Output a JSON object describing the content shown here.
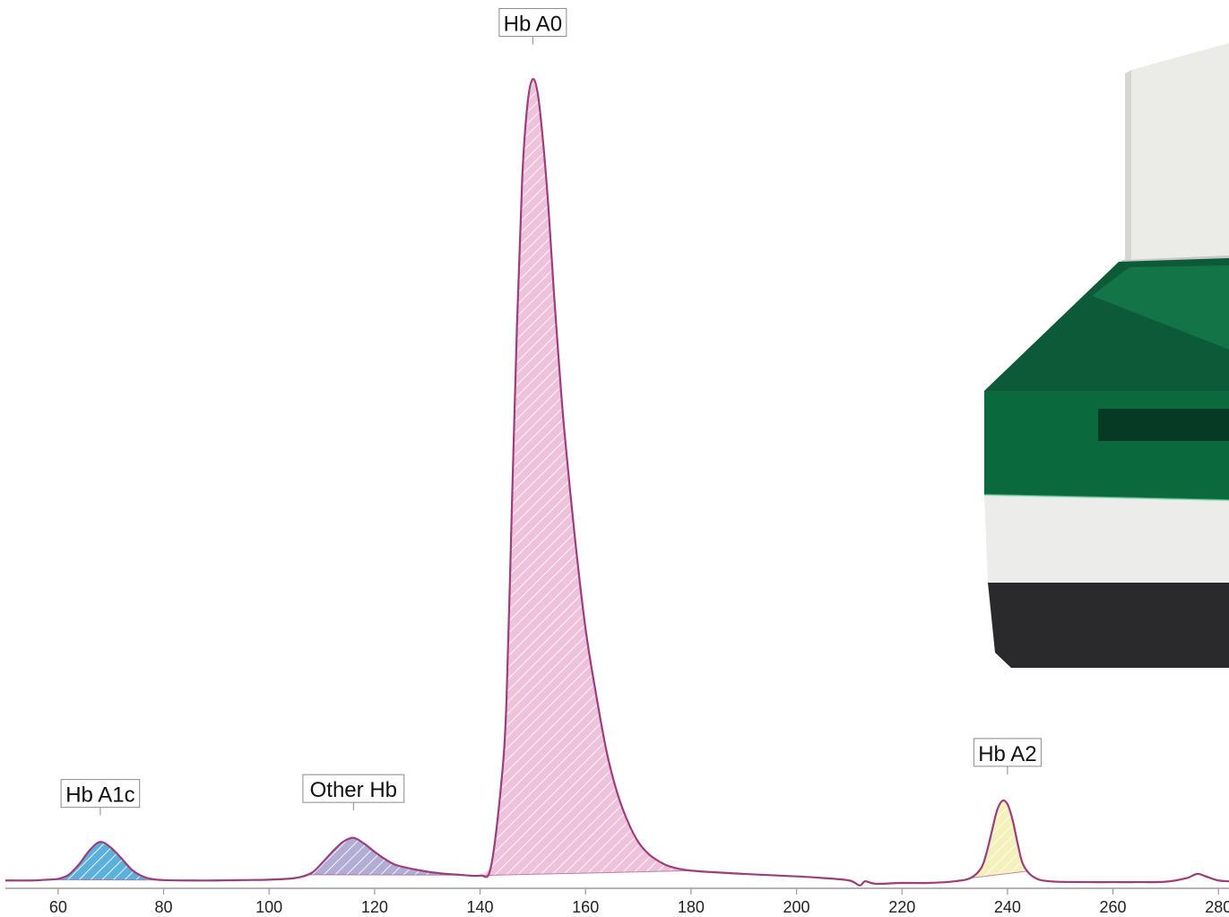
{
  "chart_data": {
    "type": "area",
    "title": "",
    "xlabel": "",
    "ylabel": "",
    "xlim": [
      50,
      282
    ],
    "ylim": [
      0,
      100
    ],
    "x_ticks": [
      60,
      80,
      100,
      120,
      140,
      160,
      180,
      200,
      220,
      240,
      260,
      280
    ],
    "trace_color": "#9c3e7c",
    "trace": {
      "x": [
        50,
        55,
        58,
        60,
        62,
        64,
        66,
        68,
        70,
        72,
        74,
        76,
        78,
        80,
        85,
        90,
        95,
        100,
        105,
        108,
        110,
        112,
        114,
        116,
        118,
        120,
        122,
        124,
        128,
        132,
        136,
        140,
        142,
        144,
        145,
        146,
        147,
        148,
        149,
        150,
        151,
        152,
        153,
        154,
        155,
        156,
        158,
        160,
        162,
        164,
        166,
        168,
        170,
        172,
        174,
        176,
        180,
        190,
        200,
        205,
        210,
        212,
        213,
        215,
        220,
        225,
        230,
        233,
        235,
        236,
        237,
        238,
        239,
        240,
        241,
        242,
        243,
        245,
        248,
        255,
        260,
        265,
        270,
        274,
        276,
        278,
        280,
        282
      ],
      "y": [
        0.3,
        0.3,
        0.4,
        0.5,
        1.0,
        2.3,
        4.0,
        5.0,
        4.3,
        3.0,
        1.6,
        0.8,
        0.45,
        0.35,
        0.3,
        0.3,
        0.35,
        0.4,
        0.6,
        1.2,
        2.4,
        3.8,
        5.0,
        5.5,
        4.8,
        3.8,
        2.9,
        2.2,
        1.6,
        1.2,
        1.0,
        0.9,
        1.8,
        12,
        22,
        45,
        68,
        86,
        95,
        98,
        96,
        90,
        82,
        72,
        63,
        55,
        42,
        31,
        23,
        16,
        11,
        7.5,
        5.0,
        3.5,
        2.6,
        2.0,
        1.5,
        1.1,
        0.8,
        0.6,
        0.3,
        -0.3,
        0.2,
        -0.1,
        0.0,
        0.0,
        0.2,
        0.6,
        1.8,
        3.6,
        6.2,
        8.8,
        10.0,
        9.6,
        7.6,
        4.6,
        2.2,
        0.7,
        0.2,
        0.1,
        0.1,
        0.1,
        0.15,
        0.6,
        1.1,
        0.7,
        0.3,
        0.2
      ]
    },
    "peaks": [
      {
        "name": "Hb A1c",
        "label_x": 68,
        "label_y": 9.0,
        "range": [
          58,
          80
        ],
        "color": "#4aa8d8"
      },
      {
        "name": "Other Hb",
        "label_x": 116,
        "label_y": 9.6,
        "range": [
          107,
          138
        ],
        "color": "#a8a4cf"
      },
      {
        "name": "Hb A0",
        "label_x": 150,
        "label_y": 103.0,
        "range": [
          140,
          180
        ],
        "color": "#edbbd8"
      },
      {
        "name": "Hb A2",
        "label_x": 240,
        "label_y": 14.0,
        "range": [
          233,
          244
        ],
        "color": "#f3efb4"
      }
    ],
    "grid": false,
    "legend": "none"
  }
}
